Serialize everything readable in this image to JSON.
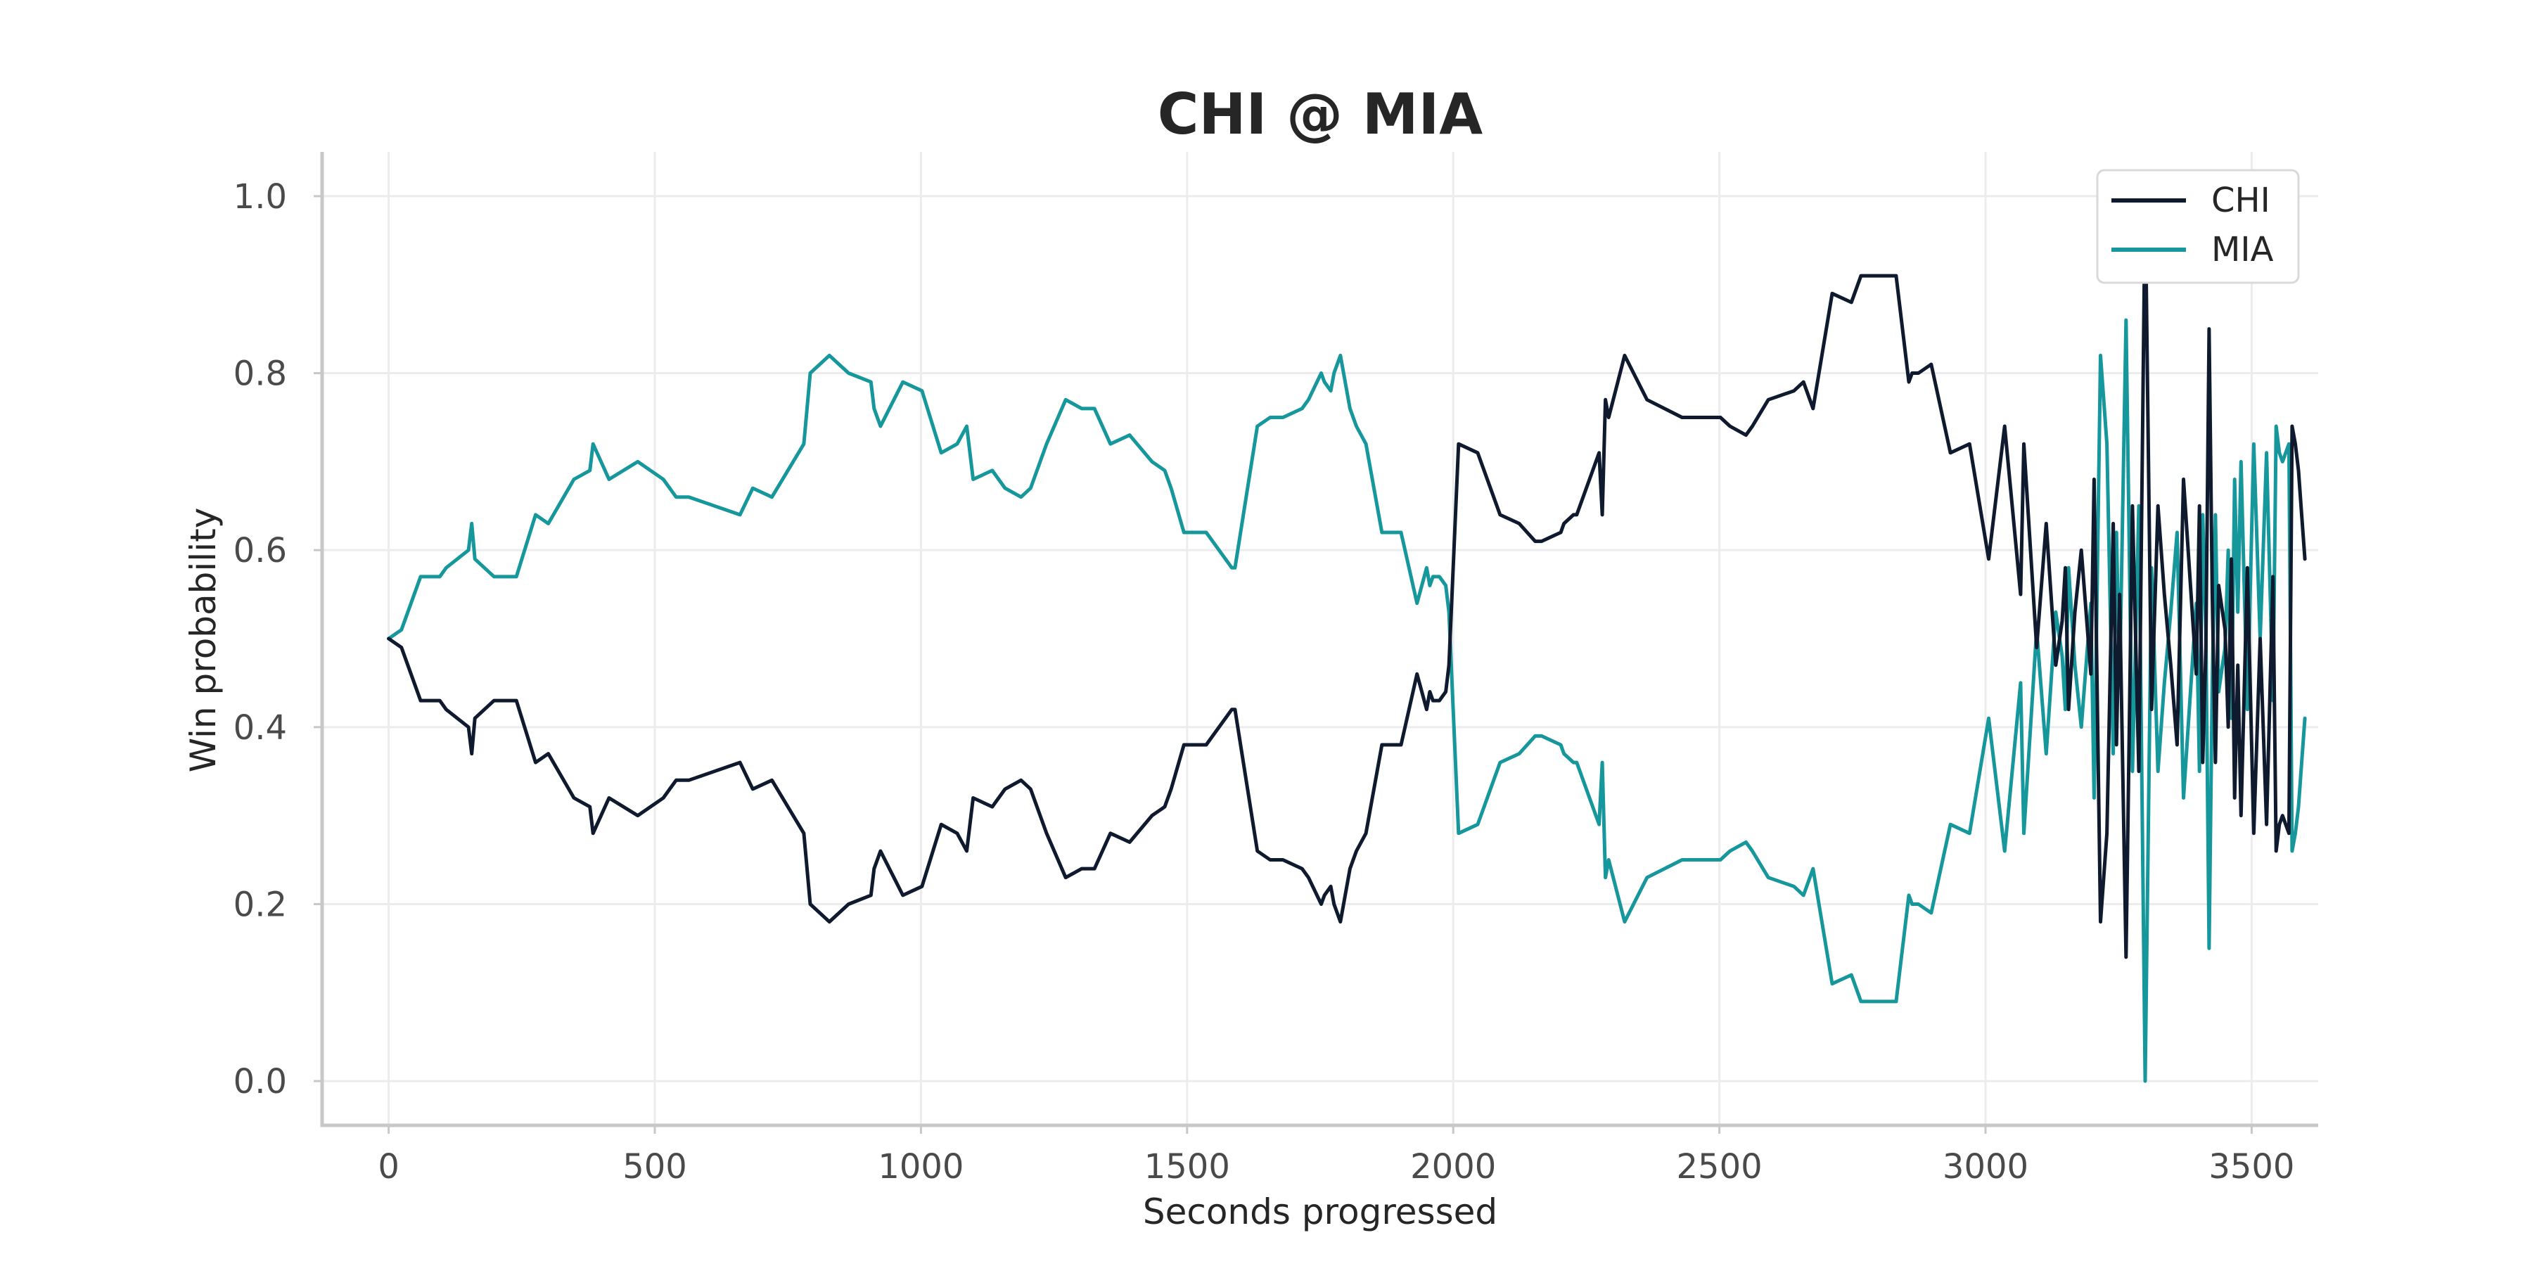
{
  "chart_data": {
    "type": "line",
    "title": "CHI @ MIA",
    "xlabel": "Seconds progressed",
    "ylabel": "Win probability",
    "xlim": [
      -125,
      3625
    ],
    "ylim": [
      -0.05,
      1.05
    ],
    "xticks": [
      0,
      500,
      1000,
      1500,
      2000,
      2500,
      3000,
      3500
    ],
    "xtick_labels": [
      "0",
      "500",
      "1000",
      "1500",
      "2000",
      "2500",
      "3000",
      "3500"
    ],
    "yticks": [
      0.0,
      0.2,
      0.4,
      0.6,
      0.8,
      1.0
    ],
    "ytick_labels": [
      "0.0",
      "0.2",
      "0.4",
      "0.6",
      "0.8",
      "1.0"
    ],
    "grid": true,
    "legend_position": "top-right",
    "series": [
      {
        "name": "CHI",
        "color": "#0f1a2e",
        "x": [
          0,
          24,
          60,
          96,
          108,
          150,
          156,
          162,
          198,
          240,
          276,
          300,
          348,
          378,
          384,
          414,
          468,
          516,
          540,
          564,
          612,
          660,
          684,
          720,
          780,
          792,
          828,
          864,
          906,
          912,
          924,
          966,
          1002,
          1038,
          1068,
          1086,
          1098,
          1134,
          1158,
          1188,
          1206,
          1236,
          1272,
          1302,
          1326,
          1356,
          1392,
          1434,
          1458,
          1470,
          1494,
          1536,
          1584,
          1590,
          1632,
          1656,
          1680,
          1716,
          1728,
          1752,
          1758,
          1770,
          1776,
          1788,
          1806,
          1818,
          1836,
          1866,
          1902,
          1932,
          1950,
          1956,
          1962,
          1974,
          1986,
          1992,
          2010,
          2046,
          2088,
          2124,
          2154,
          2166,
          2202,
          2208,
          2226,
          2232,
          2274,
          2280,
          2286,
          2292,
          2322,
          2364,
          2430,
          2472,
          2502,
          2520,
          2550,
          2562,
          2592,
          2640,
          2658,
          2676,
          2712,
          2748,
          2766,
          2802,
          2832,
          2856,
          2862,
          2874,
          2898,
          2934,
          2970,
          3006,
          3036,
          3066,
          3072,
          3096,
          3114,
          3132,
          3144,
          3150,
          3156,
          3168,
          3180,
          3198,
          3204,
          3216,
          3228,
          3240,
          3246,
          3252,
          3264,
          3276,
          3288,
          3300,
          3312,
          3324,
          3336,
          3348,
          3360,
          3372,
          3384,
          3396,
          3402,
          3408,
          3414,
          3420,
          3426,
          3432,
          3438,
          3450,
          3456,
          3462,
          3468,
          3474,
          3480,
          3492,
          3504,
          3516,
          3528,
          3540,
          3546,
          3552,
          3558,
          3564,
          3570,
          3576,
          3582,
          3588,
          3594,
          3600
        ],
        "y": [
          0.5,
          0.49,
          0.43,
          0.43,
          0.42,
          0.4,
          0.37,
          0.41,
          0.43,
          0.43,
          0.36,
          0.37,
          0.32,
          0.31,
          0.28,
          0.32,
          0.3,
          0.32,
          0.34,
          0.34,
          0.35,
          0.36,
          0.33,
          0.34,
          0.28,
          0.2,
          0.18,
          0.2,
          0.21,
          0.24,
          0.26,
          0.21,
          0.22,
          0.29,
          0.28,
          0.26,
          0.32,
          0.31,
          0.33,
          0.34,
          0.33,
          0.28,
          0.23,
          0.24,
          0.24,
          0.28,
          0.27,
          0.3,
          0.31,
          0.33,
          0.38,
          0.38,
          0.42,
          0.42,
          0.26,
          0.25,
          0.25,
          0.24,
          0.23,
          0.2,
          0.21,
          0.22,
          0.2,
          0.18,
          0.24,
          0.26,
          0.28,
          0.38,
          0.38,
          0.46,
          0.42,
          0.44,
          0.43,
          0.43,
          0.44,
          0.47,
          0.72,
          0.71,
          0.64,
          0.63,
          0.61,
          0.61,
          0.62,
          0.63,
          0.64,
          0.64,
          0.71,
          0.64,
          0.77,
          0.75,
          0.82,
          0.77,
          0.75,
          0.75,
          0.75,
          0.74,
          0.73,
          0.74,
          0.77,
          0.78,
          0.79,
          0.76,
          0.89,
          0.88,
          0.91,
          0.91,
          0.91,
          0.79,
          0.8,
          0.8,
          0.81,
          0.71,
          0.72,
          0.59,
          0.74,
          0.55,
          0.72,
          0.49,
          0.63,
          0.47,
          0.52,
          0.58,
          0.42,
          0.53,
          0.6,
          0.46,
          0.68,
          0.18,
          0.28,
          0.63,
          0.38,
          0.55,
          0.14,
          0.65,
          0.35,
          1.0,
          0.42,
          0.65,
          0.55,
          0.47,
          0.38,
          0.68,
          0.57,
          0.46,
          0.65,
          0.36,
          0.49,
          0.85,
          0.55,
          0.36,
          0.56,
          0.51,
          0.4,
          0.59,
          0.32,
          0.47,
          0.3,
          0.58,
          0.28,
          0.5,
          0.29,
          0.57,
          0.26,
          0.29,
          0.3,
          0.29,
          0.28,
          0.74,
          0.72,
          0.69,
          0.64,
          0.59
        ]
      },
      {
        "name": "MIA",
        "color": "#15979c",
        "x": [
          0,
          24,
          60,
          96,
          108,
          150,
          156,
          162,
          198,
          240,
          276,
          300,
          348,
          378,
          384,
          414,
          468,
          516,
          540,
          564,
          612,
          660,
          684,
          720,
          780,
          792,
          828,
          864,
          906,
          912,
          924,
          966,
          1002,
          1038,
          1068,
          1086,
          1098,
          1134,
          1158,
          1188,
          1206,
          1236,
          1272,
          1302,
          1326,
          1356,
          1392,
          1434,
          1458,
          1470,
          1494,
          1536,
          1584,
          1590,
          1632,
          1656,
          1680,
          1716,
          1728,
          1752,
          1758,
          1770,
          1776,
          1788,
          1806,
          1818,
          1836,
          1866,
          1902,
          1932,
          1950,
          1956,
          1962,
          1974,
          1986,
          1992,
          2010,
          2046,
          2088,
          2124,
          2154,
          2166,
          2202,
          2208,
          2226,
          2232,
          2274,
          2280,
          2286,
          2292,
          2322,
          2364,
          2430,
          2472,
          2502,
          2520,
          2550,
          2562,
          2592,
          2640,
          2658,
          2676,
          2712,
          2748,
          2766,
          2802,
          2832,
          2856,
          2862,
          2874,
          2898,
          2934,
          2970,
          3006,
          3036,
          3066,
          3072,
          3096,
          3114,
          3132,
          3144,
          3150,
          3156,
          3168,
          3180,
          3198,
          3204,
          3216,
          3228,
          3240,
          3246,
          3252,
          3264,
          3276,
          3288,
          3300,
          3312,
          3324,
          3336,
          3348,
          3360,
          3372,
          3384,
          3396,
          3402,
          3408,
          3414,
          3420,
          3426,
          3432,
          3438,
          3450,
          3456,
          3462,
          3468,
          3474,
          3480,
          3492,
          3504,
          3516,
          3528,
          3540,
          3546,
          3552,
          3558,
          3564,
          3570,
          3576,
          3582,
          3588,
          3594,
          3600
        ],
        "y": [
          0.5,
          0.51,
          0.57,
          0.57,
          0.58,
          0.6,
          0.63,
          0.59,
          0.57,
          0.57,
          0.64,
          0.63,
          0.68,
          0.69,
          0.72,
          0.68,
          0.7,
          0.68,
          0.66,
          0.66,
          0.65,
          0.64,
          0.67,
          0.66,
          0.72,
          0.8,
          0.82,
          0.8,
          0.79,
          0.76,
          0.74,
          0.79,
          0.78,
          0.71,
          0.72,
          0.74,
          0.68,
          0.69,
          0.67,
          0.66,
          0.67,
          0.72,
          0.77,
          0.76,
          0.76,
          0.72,
          0.73,
          0.7,
          0.69,
          0.67,
          0.62,
          0.62,
          0.58,
          0.58,
          0.74,
          0.75,
          0.75,
          0.76,
          0.77,
          0.8,
          0.79,
          0.78,
          0.8,
          0.82,
          0.76,
          0.74,
          0.72,
          0.62,
          0.62,
          0.54,
          0.58,
          0.56,
          0.57,
          0.57,
          0.56,
          0.53,
          0.28,
          0.29,
          0.36,
          0.37,
          0.39,
          0.39,
          0.38,
          0.37,
          0.36,
          0.36,
          0.29,
          0.36,
          0.23,
          0.25,
          0.18,
          0.23,
          0.25,
          0.25,
          0.25,
          0.26,
          0.27,
          0.26,
          0.23,
          0.22,
          0.21,
          0.24,
          0.11,
          0.12,
          0.09,
          0.09,
          0.09,
          0.21,
          0.2,
          0.2,
          0.19,
          0.29,
          0.28,
          0.41,
          0.26,
          0.45,
          0.28,
          0.51,
          0.37,
          0.53,
          0.48,
          0.42,
          0.58,
          0.47,
          0.4,
          0.54,
          0.32,
          0.82,
          0.72,
          0.37,
          0.62,
          0.45,
          0.86,
          0.35,
          0.65,
          0.0,
          0.58,
          0.35,
          0.45,
          0.53,
          0.62,
          0.32,
          0.43,
          0.54,
          0.35,
          0.64,
          0.51,
          0.15,
          0.45,
          0.64,
          0.44,
          0.49,
          0.6,
          0.41,
          0.68,
          0.53,
          0.7,
          0.42,
          0.72,
          0.5,
          0.71,
          0.43,
          0.74,
          0.71,
          0.7,
          0.71,
          0.72,
          0.26,
          0.28,
          0.31,
          0.36,
          0.41
        ]
      }
    ]
  }
}
